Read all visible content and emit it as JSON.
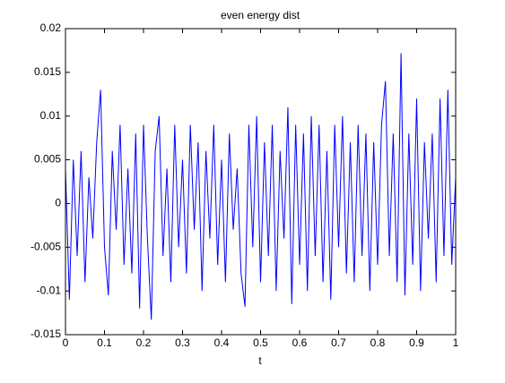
{
  "chart_data": {
    "type": "line",
    "title": "even energy dist",
    "x_label": "t",
    "x": [
      0,
      0.01,
      0.02,
      0.03,
      0.04,
      0.05,
      0.06,
      0.07,
      0.08,
      0.09,
      0.1,
      0.11,
      0.12,
      0.13,
      0.14,
      0.15,
      0.16,
      0.17,
      0.18,
      0.19,
      0.2,
      0.21,
      0.22,
      0.23,
      0.24,
      0.25,
      0.26,
      0.27,
      0.28,
      0.29,
      0.3,
      0.31,
      0.32,
      0.33,
      0.34,
      0.35,
      0.36,
      0.37,
      0.38,
      0.39,
      0.4,
      0.41,
      0.42,
      0.43,
      0.44,
      0.45,
      0.46,
      0.47,
      0.48,
      0.49,
      0.5,
      0.51,
      0.52,
      0.53,
      0.54,
      0.55,
      0.56,
      0.57,
      0.58,
      0.59,
      0.6,
      0.61,
      0.62,
      0.63,
      0.64,
      0.65,
      0.66,
      0.67,
      0.68,
      0.69,
      0.7,
      0.71,
      0.72,
      0.73,
      0.74,
      0.75,
      0.76,
      0.77,
      0.78,
      0.79,
      0.8,
      0.81,
      0.82,
      0.83,
      0.84,
      0.85,
      0.86,
      0.87,
      0.88,
      0.89,
      0.9,
      0.91,
      0.92,
      0.93,
      0.94,
      0.95,
      0.96,
      0.97,
      0.98,
      0.99,
      1
    ],
    "series": [
      {
        "color": "#0000ff",
        "values": [
          0.004,
          -0.011,
          0.005,
          -0.006,
          0.006,
          -0.009,
          0.003,
          -0.004,
          0.007,
          0.013,
          -0.005,
          -0.0105,
          0.006,
          -0.003,
          0.009,
          -0.007,
          0.004,
          -0.008,
          0.008,
          -0.012,
          0.009,
          -0.004,
          -0.0133,
          0.006,
          0.01,
          -0.006,
          0.004,
          -0.009,
          0.009,
          -0.005,
          0.005,
          -0.008,
          0.009,
          -0.003,
          0.007,
          -0.01,
          0.006,
          -0.004,
          0.009,
          -0.007,
          0.005,
          -0.009,
          0.008,
          -0.003,
          0.004,
          -0.008,
          -0.0118,
          0.009,
          -0.005,
          0.01,
          -0.009,
          0.007,
          -0.006,
          0.009,
          -0.01,
          0.006,
          -0.004,
          0.011,
          -0.0115,
          0.009,
          -0.007,
          0.008,
          -0.01,
          0.01,
          -0.006,
          0.009,
          -0.009,
          0.006,
          -0.011,
          0.009,
          -0.005,
          0.01,
          -0.008,
          0.007,
          -0.009,
          0.009,
          -0.006,
          0.008,
          -0.01,
          0.007,
          -0.007,
          0.009,
          0.014,
          -0.006,
          0.008,
          -0.009,
          0.0172,
          -0.0105,
          0.008,
          -0.007,
          0.012,
          -0.01,
          0.007,
          -0.004,
          0.008,
          -0.009,
          0.012,
          -0.006,
          0.013,
          -0.007,
          0.003
        ]
      }
    ],
    "xlim": [
      0,
      1
    ],
    "xticks": [
      0,
      0.1,
      0.2,
      0.3,
      0.4,
      0.5,
      0.6,
      0.7,
      0.8,
      0.9,
      1
    ],
    "ylim": [
      -0.015,
      0.02
    ],
    "yticks": [
      -0.015,
      -0.01,
      -0.005,
      0,
      0.005,
      0.01,
      0.015,
      0.02
    ],
    "grid": false
  }
}
